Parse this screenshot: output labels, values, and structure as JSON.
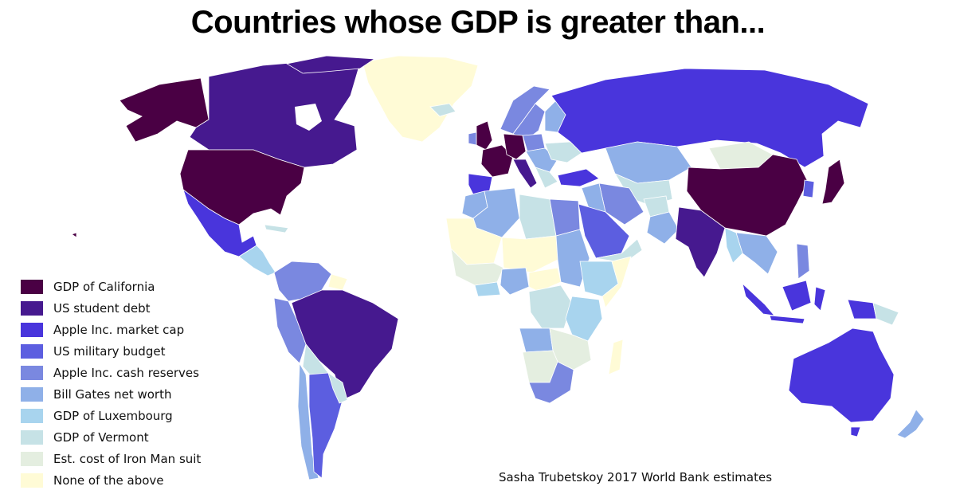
{
  "title": "Countries whose GDP is greater than...",
  "credit": "Sasha Trubetskoy 2017 World Bank estimates",
  "legend": [
    {
      "label": "GDP of California",
      "color": "#4a0044"
    },
    {
      "label": "US student debt",
      "color": "#46198f"
    },
    {
      "label": "Apple Inc. market cap",
      "color": "#4935dc"
    },
    {
      "label": "US military budget",
      "color": "#5c5ee0"
    },
    {
      "label": "Apple Inc. cash reserves",
      "color": "#7a88e0"
    },
    {
      "label": "Bill Gates net worth",
      "color": "#8fb0e8"
    },
    {
      "label": "GDP of Luxembourg",
      "color": "#a8d4ee"
    },
    {
      "label": "GDP of Vermont",
      "color": "#c6e2e6"
    },
    {
      "label": "Est. cost of Iron Man suit",
      "color": "#e4eee0"
    },
    {
      "label": "None of the above",
      "color": "#fffbd6"
    }
  ]
}
